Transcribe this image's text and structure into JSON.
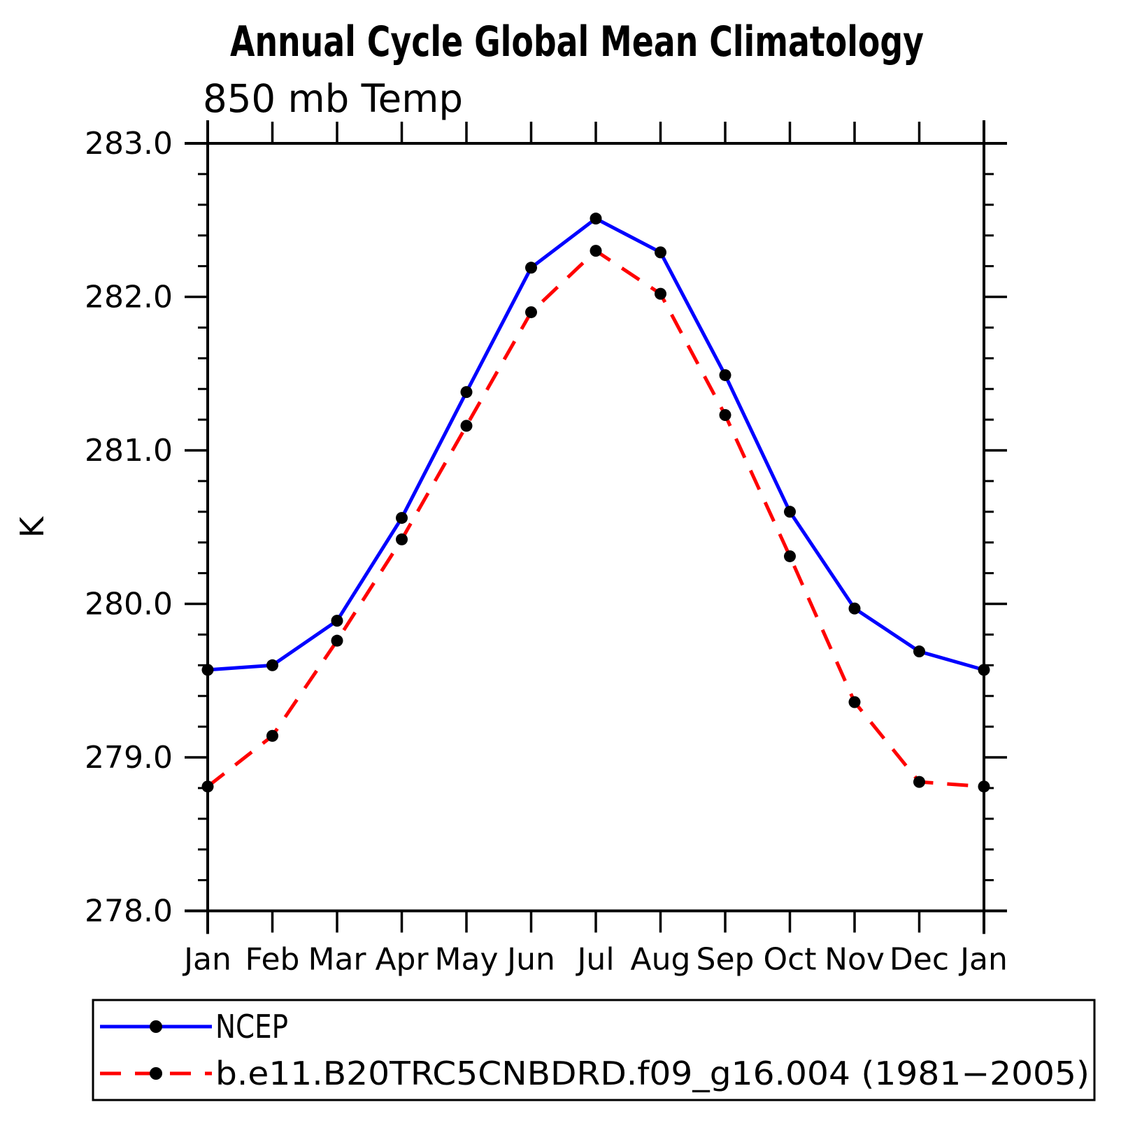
{
  "title": "Annual Cycle Global Mean Climatology",
  "subtitle": "850 mb Temp",
  "y_axis_label": "K",
  "legend": {
    "entries": [
      {
        "label": "NCEP",
        "color": "#0000ff",
        "style": "solid"
      },
      {
        "label": "b.e11.B20TRC5CNBDRD.f09_g16.004 (1981−2005)",
        "color": "#ff0000",
        "style": "dashed"
      }
    ]
  },
  "chart_data": {
    "type": "line",
    "title": "Annual Cycle Global Mean Climatology",
    "subtitle": "850 mb Temp",
    "xlabel": "",
    "ylabel": "K",
    "categories": [
      "Jan",
      "Feb",
      "Mar",
      "Apr",
      "May",
      "Jun",
      "Jul",
      "Aug",
      "Sep",
      "Oct",
      "Nov",
      "Dec",
      "Jan"
    ],
    "series": [
      {
        "name": "NCEP",
        "color": "#0000ff",
        "line_style": "solid",
        "marker": "filled-circle",
        "marker_color": "#000000",
        "values": [
          279.57,
          279.6,
          279.89,
          280.56,
          281.38,
          282.19,
          282.51,
          282.29,
          281.49,
          280.6,
          279.97,
          279.69,
          279.57
        ]
      },
      {
        "name": "b.e11.B20TRC5CNBDRD.f09_g16.004 (1981−2005)",
        "color": "#ff0000",
        "line_style": "dashed",
        "marker": "filled-circle",
        "marker_color": "#000000",
        "values": [
          278.81,
          279.14,
          279.76,
          280.42,
          281.16,
          281.9,
          282.3,
          282.02,
          281.23,
          280.31,
          279.36,
          278.84,
          278.81
        ]
      }
    ],
    "ylim": [
      278.0,
      283.0
    ],
    "y_major_ticks": [
      283.0,
      282.0,
      281.0,
      280.0,
      279.0,
      278.0
    ],
    "y_minor_step": 0.2,
    "grid": false,
    "legend_position": "bottom-left-box"
  }
}
